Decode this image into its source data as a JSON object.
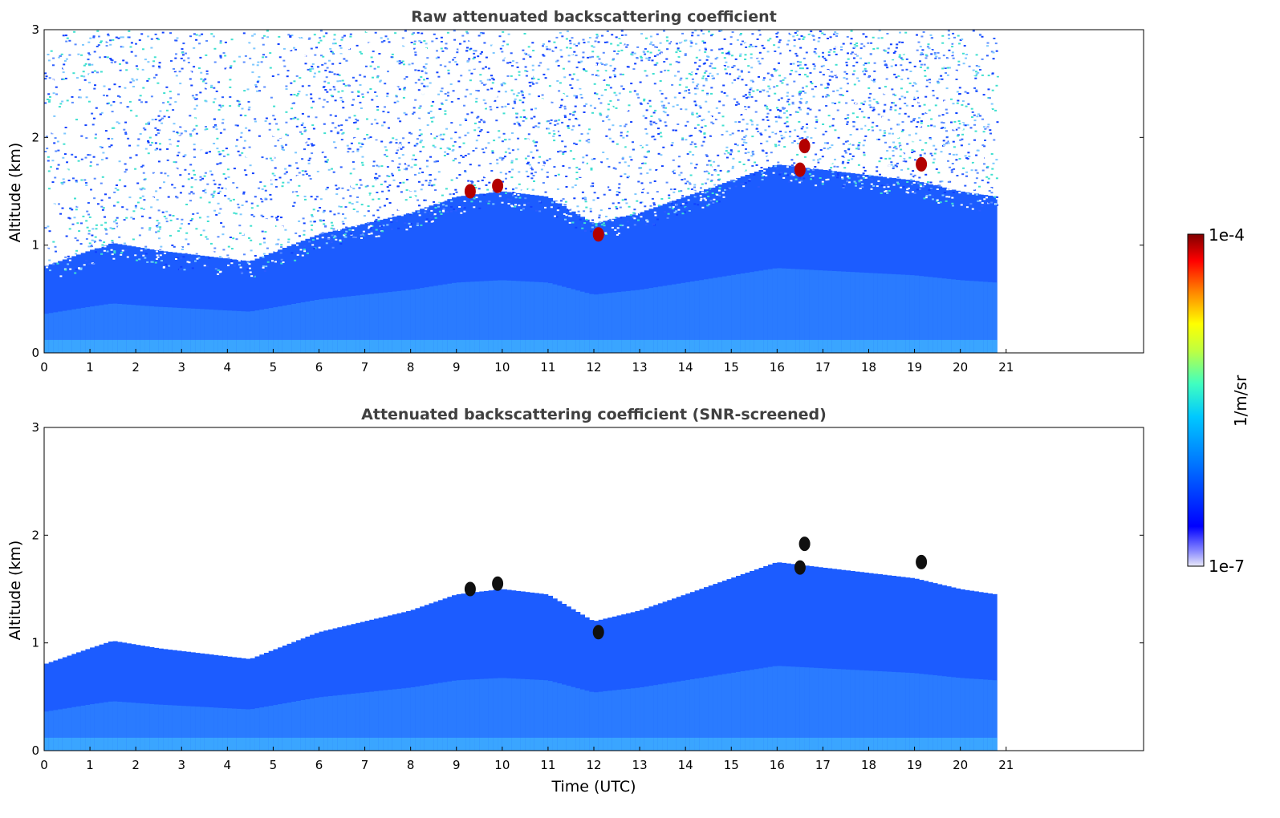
{
  "chart_data": [
    {
      "type": "heatmap",
      "title": "Raw attenuated backscattering coefficient",
      "xlabel": "",
      "ylabel": "Altitude (km)",
      "xlim": [
        0,
        24
      ],
      "ylim": [
        0,
        3
      ],
      "x_ticks": [
        "0",
        "1",
        "2",
        "3",
        "4",
        "5",
        "6",
        "7",
        "8",
        "9",
        "10",
        "11",
        "12",
        "13",
        "14",
        "15",
        "16",
        "17",
        "18",
        "19",
        "20",
        "21"
      ],
      "y_ticks": [
        "0",
        "1",
        "2",
        "3"
      ],
      "data_extent_hours": [
        0,
        20.8
      ],
      "features": {
        "boundary_layer_top_km": [
          [
            0,
            0.8
          ],
          [
            1,
            0.95
          ],
          [
            1.5,
            1.02
          ],
          [
            2.5,
            0.95
          ],
          [
            3.5,
            0.9
          ],
          [
            4.5,
            0.85
          ],
          [
            6,
            1.1
          ],
          [
            8,
            1.3
          ],
          [
            9,
            1.45
          ],
          [
            10,
            1.5
          ],
          [
            11,
            1.45
          ],
          [
            12,
            1.2
          ],
          [
            13,
            1.3
          ],
          [
            14,
            1.45
          ],
          [
            15,
            1.6
          ],
          [
            16,
            1.75
          ],
          [
            17,
            1.7
          ],
          [
            18,
            1.65
          ],
          [
            19,
            1.6
          ],
          [
            20,
            1.5
          ],
          [
            20.8,
            1.45
          ]
        ],
        "clouds": [
          {
            "time": 9.3,
            "altitude_km": 1.5
          },
          {
            "time": 9.9,
            "altitude_km": 1.55
          },
          {
            "time": 12.1,
            "altitude_km": 1.1
          },
          {
            "time": 16.5,
            "altitude_km": 1.7
          },
          {
            "time": 16.6,
            "altitude_km": 1.92
          },
          {
            "time": 19.15,
            "altitude_km": 1.75
          }
        ],
        "noise_above_layer": true
      }
    },
    {
      "type": "heatmap",
      "title": "Attenuated backscattering coefficient (SNR-screened)",
      "xlabel": "Time (UTC)",
      "ylabel": "Altitude (km)",
      "xlim": [
        0,
        24
      ],
      "ylim": [
        0,
        3
      ],
      "x_ticks": [
        "0",
        "1",
        "2",
        "3",
        "4",
        "5",
        "6",
        "7",
        "8",
        "9",
        "10",
        "11",
        "12",
        "13",
        "14",
        "15",
        "16",
        "17",
        "18",
        "19",
        "20",
        "21"
      ],
      "y_ticks": [
        "0",
        "1",
        "2",
        "3"
      ],
      "data_extent_hours": [
        0,
        20.8
      ],
      "features": {
        "boundary_layer_top_km": [
          [
            0,
            0.8
          ],
          [
            1,
            0.95
          ],
          [
            1.5,
            1.02
          ],
          [
            2.5,
            0.95
          ],
          [
            3.5,
            0.9
          ],
          [
            4.5,
            0.85
          ],
          [
            6,
            1.1
          ],
          [
            8,
            1.3
          ],
          [
            9,
            1.45
          ],
          [
            10,
            1.5
          ],
          [
            11,
            1.45
          ],
          [
            12,
            1.2
          ],
          [
            13,
            1.3
          ],
          [
            14,
            1.45
          ],
          [
            15,
            1.6
          ],
          [
            16,
            1.75
          ],
          [
            17,
            1.7
          ],
          [
            18,
            1.65
          ],
          [
            19,
            1.6
          ],
          [
            20,
            1.5
          ],
          [
            20.8,
            1.45
          ]
        ],
        "clouds": [
          {
            "time": 9.3,
            "altitude_km": 1.5
          },
          {
            "time": 9.9,
            "altitude_km": 1.55
          },
          {
            "time": 12.1,
            "altitude_km": 1.1
          },
          {
            "time": 16.5,
            "altitude_km": 1.7
          },
          {
            "time": 16.6,
            "altitude_km": 1.92
          },
          {
            "time": 19.15,
            "altitude_km": 1.75
          }
        ],
        "noise_above_layer": false
      }
    }
  ],
  "colorbar": {
    "label": "1/m/sr",
    "max_label": "1e-4",
    "min_label": "1e-7",
    "scale": "log",
    "colormap": [
      "#e8e8f8",
      "#0000ff",
      "#00a0ff",
      "#00ffff",
      "#80ff80",
      "#ffff00",
      "#ff8000",
      "#ff0000",
      "#800000"
    ]
  }
}
